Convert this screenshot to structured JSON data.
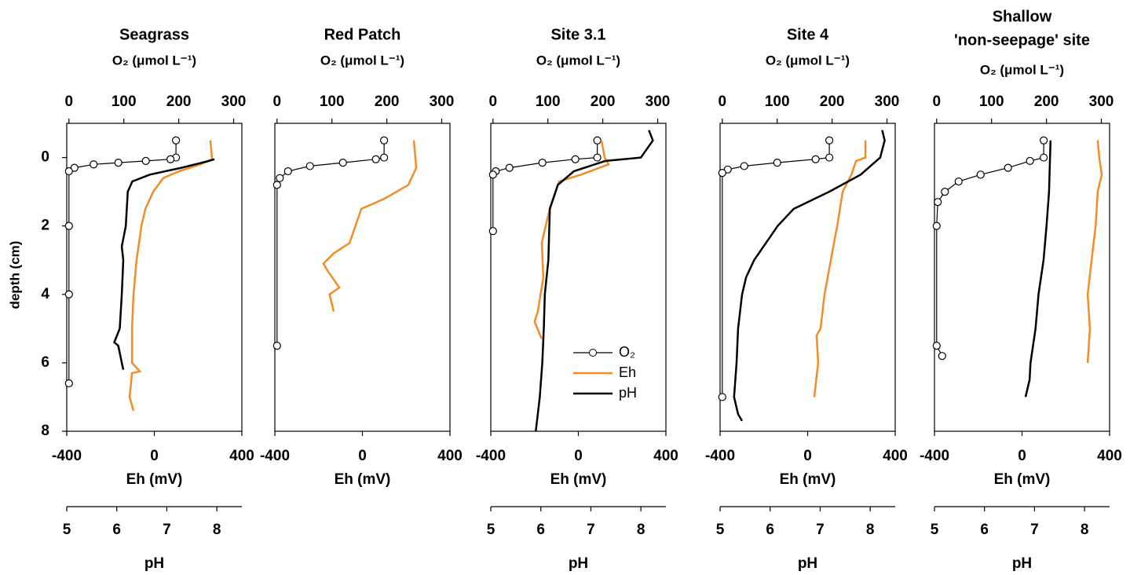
{
  "chart_data": [
    {
      "type": "line",
      "title": "Seagrass",
      "x2label": "O₂ (μmol L⁻¹)",
      "xlabel": "Eh (mV)",
      "x3label": "pH",
      "ylabel": "depth (cm)",
      "ylim": [
        -1,
        8
      ],
      "y_inverted": true,
      "yticks": [
        0,
        2,
        4,
        6,
        8
      ],
      "x2lim": [
        -4,
        315
      ],
      "x2ticks": [
        0,
        100,
        200,
        300
      ],
      "xlim": [
        -400,
        400
      ],
      "xticks": [
        -400,
        0,
        400
      ],
      "x3lim": [
        5,
        8.5
      ],
      "x3ticks": [
        5,
        6,
        7,
        8
      ],
      "series": [
        {
          "color": "#000000",
          "axis": "x2",
          "marker": true,
          "depth": [
            -0.5,
            0,
            0.05,
            0.1,
            0.15,
            0.2,
            0.3,
            0.4,
            2,
            4,
            6.6
          ],
          "values": [
            195,
            195,
            185,
            140,
            90,
            45,
            10,
            0,
            0,
            0,
            0
          ]
        },
        {
          "color": "#f28c28",
          "axis": "x",
          "depth": [
            -0.5,
            0.05,
            0.2,
            0.4,
            0.6,
            1.0,
            1.5,
            2,
            3,
            4,
            5,
            6,
            6.25,
            6.3,
            7,
            7.4
          ],
          "values": [
            256,
            264,
            210,
            113,
            41,
            -5,
            -41,
            -59,
            -81,
            -95,
            -102,
            -102,
            -66,
            -102,
            -113,
            -95
          ]
        },
        {
          "color": "#000000",
          "axis": "x3",
          "depth": [
            0.05,
            0.1,
            0.3,
            0.5,
            0.7,
            1.0,
            2.0,
            2.6,
            3,
            4,
            5,
            5.4,
            5.5,
            6,
            6.2
          ],
          "values": [
            7.95,
            7.84,
            7.29,
            6.66,
            6.31,
            6.22,
            6.18,
            6.1,
            6.13,
            6.1,
            6.06,
            5.95,
            6.03,
            6.1,
            6.13
          ]
        }
      ]
    },
    {
      "type": "line",
      "title": "Red Patch",
      "x2label": "O₂ (μmol L⁻¹)",
      "xlabel": "Eh (mV)",
      "ylim": [
        -1,
        8
      ],
      "y_inverted": true,
      "x2lim": [
        -4,
        315
      ],
      "x2ticks": [
        0,
        100,
        200,
        300
      ],
      "xlim": [
        -400,
        400
      ],
      "xticks": [
        -400,
        0,
        400
      ],
      "series": [
        {
          "color": "#000000",
          "axis": "x2",
          "marker": true,
          "depth": [
            -0.5,
            0,
            0.05,
            0.15,
            0.25,
            0.4,
            0.6,
            0.8,
            5.5
          ],
          "values": [
            195,
            195,
            180,
            120,
            60,
            20,
            5,
            0,
            0
          ]
        },
        {
          "color": "#f28c28",
          "axis": "x",
          "depth": [
            -0.5,
            0.3,
            0.8,
            1.2,
            1.5,
            2.5,
            2.8,
            3.1,
            3.3,
            3.8,
            4.0,
            4.5
          ],
          "values": [
            235,
            246,
            210,
            102,
            -5,
            -59,
            -131,
            -178,
            -160,
            -106,
            -150,
            -131
          ]
        }
      ]
    },
    {
      "type": "line",
      "title": "Site 3.1",
      "x2label": "O₂ (μmol L⁻¹)",
      "xlabel": "Eh (mV)",
      "x3label": "pH",
      "ylim": [
        -1,
        8
      ],
      "y_inverted": true,
      "x2lim": [
        -4,
        315
      ],
      "x2ticks": [
        0,
        100,
        200,
        300
      ],
      "xlim": [
        -400,
        400
      ],
      "xticks": [
        -400,
        0,
        400
      ],
      "x3lim": [
        5,
        8.5
      ],
      "x3ticks": [
        5,
        6,
        7,
        8
      ],
      "legend": "lower right",
      "series": [
        {
          "name": "O₂",
          "color": "#000000",
          "axis": "x2",
          "marker": true,
          "depth": [
            -0.5,
            0,
            0.05,
            0.15,
            0.3,
            0.4,
            0.5,
            2.15
          ],
          "values": [
            190,
            190,
            150,
            90,
            30,
            5,
            0,
            0
          ]
        },
        {
          "name": "Eh",
          "color": "#f28c28",
          "axis": "x",
          "depth": [
            -0.5,
            0,
            0.2,
            0.5,
            0.7,
            1.5,
            2.5,
            3.5,
            4.5,
            4.8,
            5.3
          ],
          "values": [
            106,
            120,
            138,
            12,
            -88,
            -131,
            -167,
            -160,
            -185,
            -200,
            -167
          ]
        },
        {
          "name": "pH",
          "color": "#000000",
          "axis": "x3",
          "depth": [
            -0.8,
            -0.5,
            0,
            0.1,
            0.4,
            0.8,
            1.5,
            3,
            4,
            5,
            6,
            7,
            8
          ],
          "values": [
            8.16,
            8.24,
            8.0,
            7.29,
            6.66,
            6.34,
            6.18,
            6.15,
            6.08,
            6.06,
            6.03,
            5.98,
            5.9
          ]
        }
      ]
    },
    {
      "type": "line",
      "title": "Site 4",
      "x2label": "O₂ (μmol L⁻¹)",
      "xlabel": "Eh (mV)",
      "x3label": "pH",
      "ylim": [
        -1,
        8
      ],
      "y_inverted": true,
      "x2lim": [
        -4,
        315
      ],
      "x2ticks": [
        0,
        100,
        200,
        300
      ],
      "xlim": [
        -400,
        400
      ],
      "xticks": [
        -400,
        0,
        400
      ],
      "x3lim": [
        5,
        8.5
      ],
      "x3ticks": [
        5,
        6,
        7,
        8
      ],
      "series": [
        {
          "color": "#000000",
          "axis": "x2",
          "marker": true,
          "depth": [
            -0.5,
            0,
            0.05,
            0.15,
            0.25,
            0.35,
            0.45,
            7
          ],
          "values": [
            195,
            195,
            170,
            100,
            40,
            10,
            0,
            0
          ]
        },
        {
          "color": "#f28c28",
          "axis": "x",
          "depth": [
            -0.5,
            0,
            0.1,
            0.5,
            1,
            2,
            3,
            4,
            5,
            5.2,
            6,
            7
          ],
          "values": [
            264,
            264,
            221,
            200,
            160,
            135,
            106,
            77,
            59,
            41,
            48,
            30
          ]
        },
        {
          "color": "#000000",
          "axis": "x3",
          "depth": [
            -0.8,
            -0.5,
            0,
            0.5,
            1,
            1.5,
            2,
            3,
            3.5,
            4,
            5,
            6,
            7,
            7.5,
            7.7
          ],
          "values": [
            8.24,
            8.29,
            8.2,
            7.81,
            7.18,
            6.47,
            6.15,
            5.68,
            5.52,
            5.44,
            5.36,
            5.33,
            5.28,
            5.36,
            5.44
          ]
        }
      ]
    },
    {
      "type": "line",
      "title": [
        "Shallow",
        "'non-seepage' site"
      ],
      "x2label": "O₂ (μmol L⁻¹)",
      "xlabel": "Eh (mV)",
      "x3label": "pH",
      "ylim": [
        -1,
        8
      ],
      "y_inverted": true,
      "x2lim": [
        -4,
        315
      ],
      "x2ticks": [
        0,
        100,
        200,
        300
      ],
      "xlim": [
        -400,
        400
      ],
      "xticks": [
        -400,
        0,
        400
      ],
      "x3lim": [
        5,
        8.5
      ],
      "x3ticks": [
        5,
        6,
        7,
        8
      ],
      "series": [
        {
          "color": "#000000",
          "axis": "x2",
          "marker": true,
          "depth": [
            -0.5,
            0,
            0.1,
            0.3,
            0.5,
            0.7,
            1.0,
            1.3,
            2,
            5.5,
            5.8
          ],
          "values": [
            195,
            195,
            170,
            130,
            80,
            40,
            15,
            2,
            0,
            0,
            10
          ]
        },
        {
          "color": "#f28c28",
          "axis": "x",
          "depth": [
            -0.5,
            0,
            0.5,
            1,
            2,
            3,
            4,
            5,
            6
          ],
          "values": [
            346,
            353,
            364,
            346,
            336,
            318,
            300,
            310,
            300
          ]
        },
        {
          "color": "#000000",
          "axis": "x3",
          "depth": [
            -0.5,
            1,
            2,
            3,
            4,
            5,
            6,
            6.5,
            7
          ],
          "values": [
            7.32,
            7.29,
            7.24,
            7.18,
            7.08,
            7.02,
            6.92,
            6.9,
            6.82
          ]
        }
      ]
    }
  ]
}
